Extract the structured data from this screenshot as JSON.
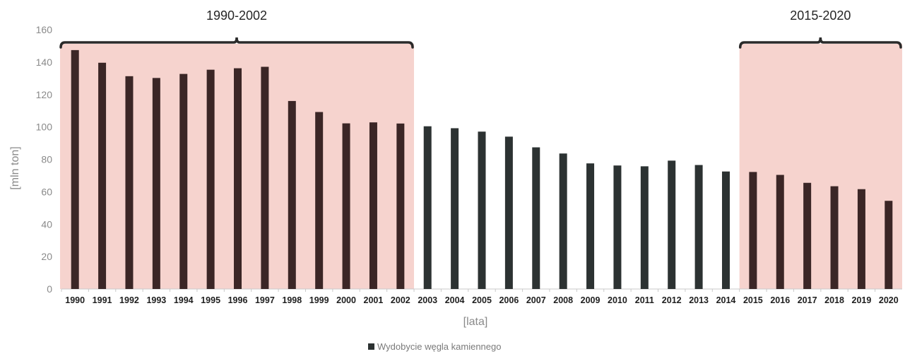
{
  "chart_data": {
    "type": "bar",
    "categories": [
      "1990",
      "1991",
      "1992",
      "1993",
      "1994",
      "1995",
      "1996",
      "1997",
      "1998",
      "1999",
      "2000",
      "2001",
      "2002",
      "2003",
      "2004",
      "2005",
      "2006",
      "2007",
      "2008",
      "2009",
      "2010",
      "2011",
      "2012",
      "2013",
      "2014",
      "2015",
      "2016",
      "2017",
      "2018",
      "2019",
      "2020"
    ],
    "series": [
      {
        "name": "Wydobycie węgla kamiennego",
        "values": [
          147.4,
          139.6,
          131.3,
          130.2,
          132.7,
          135.3,
          136.2,
          137.1,
          116.0,
          109.2,
          102.2,
          102.8,
          102.1,
          100.4,
          99.2,
          97.1,
          94.0,
          87.4,
          83.6,
          77.5,
          76.2,
          75.7,
          79.2,
          76.5,
          72.5,
          72.2,
          70.4,
          65.5,
          63.4,
          61.6,
          54.4
        ]
      }
    ],
    "xlabel": "[lata]",
    "ylabel": "[mln ton]",
    "ylim": [
      0,
      160
    ],
    "yticks": [
      0,
      20,
      40,
      60,
      80,
      100,
      120,
      140,
      160
    ],
    "grid": false,
    "legend_position": "bottom",
    "highlighted_periods": [
      {
        "label": "1990-2002",
        "from": "1990",
        "to": "2002"
      },
      {
        "label": "2015-2020",
        "from": "2015",
        "to": "2020"
      }
    ],
    "colors": {
      "highlight_bar": "#3b2626",
      "normal_bar": "#2c3232",
      "highlight_background": "#f6d3ce",
      "bracket": "#2a2a2a",
      "y_tick_label": "#8a8a8a",
      "x_tick_label": "#1e1e1e"
    }
  }
}
